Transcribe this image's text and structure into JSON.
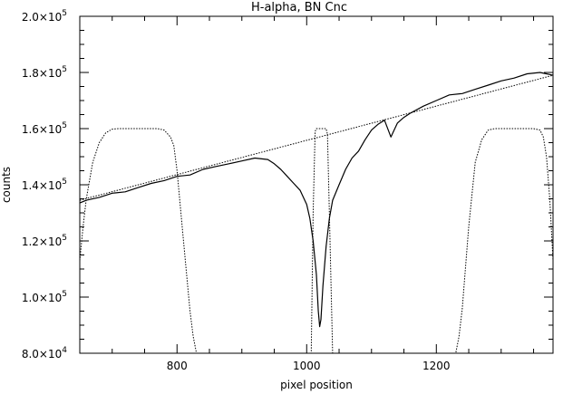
{
  "chart_data": {
    "type": "line",
    "title": "H-alpha, BN Cnc",
    "xlabel": "pixel position",
    "ylabel": "counts",
    "xlim": [
      650,
      1380
    ],
    "ylim": [
      80000,
      200000
    ],
    "x_ticks": [
      {
        "value": 800,
        "label": "800"
      },
      {
        "value": 1000,
        "label": "1000"
      },
      {
        "value": 1200,
        "label": "1200"
      }
    ],
    "y_ticks": [
      {
        "value": 80000,
        "mantissa": "8.0×10",
        "exponent": "4"
      },
      {
        "value": 100000,
        "mantissa": "1.0×10",
        "exponent": "5"
      },
      {
        "value": 120000,
        "mantissa": "1.2×10",
        "exponent": "5"
      },
      {
        "value": 140000,
        "mantissa": "1.4×10",
        "exponent": "5"
      },
      {
        "value": 160000,
        "mantissa": "1.6×10",
        "exponent": "5"
      },
      {
        "value": 180000,
        "mantissa": "1.8×10",
        "exponent": "5"
      },
      {
        "value": 200000,
        "mantissa": "2.0×10",
        "exponent": "5"
      }
    ],
    "grid": false,
    "series": [
      {
        "style": "solid",
        "color": "#000000",
        "x": [
          650,
          660,
          680,
          700,
          720,
          740,
          760,
          780,
          800,
          820,
          840,
          860,
          880,
          900,
          920,
          940,
          950,
          960,
          970,
          980,
          990,
          1000,
          1005,
          1010,
          1015,
          1018,
          1020,
          1022,
          1025,
          1030,
          1035,
          1040,
          1050,
          1060,
          1070,
          1080,
          1090,
          1100,
          1110,
          1120,
          1130,
          1140,
          1150,
          1160,
          1180,
          1200,
          1220,
          1240,
          1260,
          1280,
          1300,
          1320,
          1340,
          1360,
          1380
        ],
        "y": [
          133500,
          134500,
          135500,
          137000,
          137500,
          139000,
          140500,
          141500,
          143000,
          143500,
          145500,
          146500,
          147500,
          148500,
          149500,
          149000,
          147500,
          145500,
          143000,
          140500,
          138000,
          133000,
          128000,
          120000,
          108000,
          95000,
          89500,
          92000,
          104000,
          118000,
          128000,
          134500,
          140000,
          145500,
          149500,
          152000,
          156000,
          159500,
          161500,
          163000,
          157000,
          162000,
          164000,
          165500,
          168000,
          170000,
          172000,
          172500,
          174000,
          175500,
          177000,
          178000,
          179500,
          180000,
          179000
        ]
      },
      {
        "style": "dotted",
        "color": "#000000",
        "x": [
          650,
          1380
        ],
        "y": [
          134500,
          179000
        ]
      },
      {
        "style": "dotted",
        "color": "#000000",
        "x": [
          650,
          655,
          660,
          670,
          680,
          690,
          700,
          710,
          740,
          770,
          780,
          790,
          795,
          800,
          810,
          820,
          825,
          830,
          1007,
          1010,
          1013,
          1015,
          1030,
          1032,
          1035,
          1040,
          1230,
          1235,
          1240,
          1250,
          1260,
          1270,
          1280,
          1290,
          1320,
          1350,
          1360,
          1365,
          1370,
          1375,
          1380
        ],
        "y": [
          113000,
          125000,
          135000,
          148000,
          155000,
          158500,
          159800,
          160000,
          160000,
          160000,
          159500,
          157000,
          154000,
          145000,
          120000,
          95000,
          86000,
          80000,
          80000,
          130000,
          159000,
          160000,
          160000,
          158000,
          130000,
          80000,
          80000,
          86000,
          96000,
          125000,
          148000,
          156000,
          159500,
          160000,
          160000,
          160000,
          159500,
          157000,
          150000,
          135000,
          113000
        ]
      }
    ]
  }
}
